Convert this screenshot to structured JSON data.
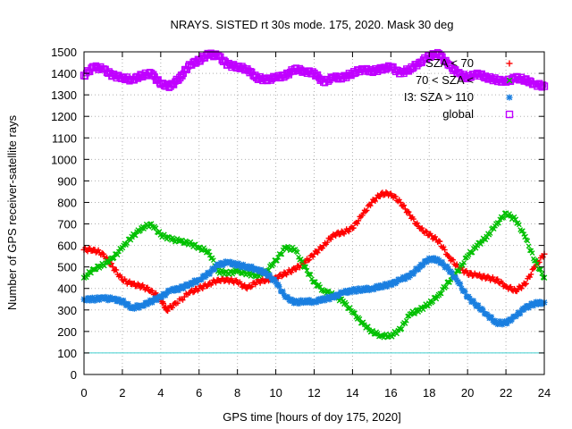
{
  "chart_data": {
    "type": "scatter",
    "title": "NRAYS. SISTED rt 30s mode. 175, 2020. Mask 30 deg",
    "xlabel": "GPS time [hours of doy 175, 2020]",
    "ylabel": "Number of GPS receiver-satellite rays",
    "xlim": [
      0,
      24
    ],
    "ylim": [
      0,
      1500
    ],
    "xticks": [
      "0",
      "2",
      "4",
      "6",
      "8",
      "10",
      "12",
      "14",
      "16",
      "18",
      "20",
      "22",
      "24"
    ],
    "yticks": [
      "0",
      "100",
      "200",
      "300",
      "400",
      "500",
      "600",
      "700",
      "800",
      "900",
      "1000",
      "1100",
      "1200",
      "1300",
      "1400",
      "1500"
    ],
    "grid": true,
    "legend_position": "top-right",
    "reference_line": {
      "value": 100,
      "color": "#40d0d0"
    },
    "series": [
      {
        "name": "I1: SZA < 70",
        "legend_text": "SZA < 70",
        "color": "#ff0000",
        "marker": "plus",
        "x": [
          0,
          0.5,
          1,
          1.5,
          2,
          2.5,
          3,
          3.5,
          4,
          4.3,
          4.8,
          5.5,
          6,
          6.5,
          7,
          7.5,
          8,
          8.5,
          9,
          9.5,
          10,
          10.5,
          11,
          11.5,
          12,
          12.5,
          13,
          13.5,
          14,
          14.5,
          15,
          15.5,
          16,
          16.5,
          17,
          17.5,
          18,
          18.5,
          19,
          19.5,
          20,
          20.5,
          21,
          21.5,
          22,
          22.5,
          23,
          23.5,
          24
        ],
        "y": [
          580,
          580,
          560,
          500,
          440,
          420,
          410,
          390,
          350,
          300,
          330,
          380,
          400,
          420,
          440,
          440,
          430,
          400,
          430,
          440,
          450,
          470,
          490,
          520,
          560,
          600,
          650,
          660,
          680,
          740,
          800,
          840,
          840,
          800,
          740,
          680,
          650,
          620,
          550,
          500,
          470,
          460,
          450,
          440,
          410,
          390,
          420,
          500,
          560
        ]
      },
      {
        "name": "I2: 70 < SZA < 110",
        "legend_text": "70 < SZA <",
        "color": "#00c000",
        "marker": "cross",
        "x": [
          0,
          0.5,
          1,
          1.5,
          2,
          2.5,
          3,
          3.5,
          4,
          4.5,
          5,
          5.5,
          6,
          6.5,
          7,
          7.5,
          8,
          8.5,
          9,
          9.5,
          10,
          10.5,
          11,
          11.5,
          12,
          12.5,
          13,
          13.5,
          14,
          14.5,
          15,
          15.5,
          16,
          16.5,
          17,
          17.5,
          18,
          18.5,
          19,
          19.5,
          20,
          20.5,
          21,
          21.5,
          22,
          22.5,
          23,
          23.5,
          24
        ],
        "y": [
          450,
          490,
          510,
          540,
          590,
          640,
          680,
          700,
          650,
          630,
          620,
          610,
          590,
          570,
          480,
          470,
          480,
          470,
          460,
          480,
          530,
          590,
          580,
          500,
          430,
          390,
          370,
          340,
          290,
          240,
          200,
          180,
          180,
          210,
          280,
          300,
          330,
          370,
          430,
          480,
          550,
          600,
          640,
          700,
          750,
          720,
          640,
          530,
          450
        ]
      },
      {
        "name": "I3: SZA > 110",
        "legend_text": "I3: SZA > 110",
        "color": "#1a7fe0",
        "marker": "star",
        "x": [
          0,
          0.5,
          1,
          1.5,
          2,
          2.5,
          3,
          3.5,
          4,
          4.5,
          5,
          5.5,
          6,
          6.5,
          7,
          7.5,
          8,
          8.5,
          9,
          9.5,
          10,
          10.5,
          11,
          11.5,
          12,
          12.5,
          13,
          13.5,
          14,
          14.5,
          15,
          15.5,
          16,
          16.5,
          17,
          17.5,
          18,
          18.5,
          19,
          19.5,
          20,
          20.5,
          21,
          21.5,
          22,
          22.5,
          23,
          23.5,
          24
        ],
        "y": [
          350,
          350,
          355,
          350,
          340,
          310,
          320,
          340,
          360,
          390,
          400,
          420,
          440,
          470,
          510,
          520,
          510,
          500,
          490,
          470,
          430,
          360,
          335,
          340,
          340,
          350,
          360,
          380,
          390,
          395,
          400,
          410,
          420,
          440,
          460,
          500,
          540,
          530,
          490,
          430,
          360,
          320,
          280,
          240,
          240,
          270,
          310,
          330,
          335
        ]
      },
      {
        "name": "global",
        "legend_text": "global",
        "color": "#c000ff",
        "marker": "square",
        "x": [
          0,
          0.5,
          1,
          1.5,
          2,
          2.5,
          3,
          3.5,
          4,
          4.5,
          5,
          5.5,
          6,
          6.5,
          7,
          7.5,
          8,
          8.5,
          9,
          9.5,
          10,
          10.5,
          11,
          11.5,
          12,
          12.5,
          13,
          13.5,
          14,
          14.5,
          15,
          15.5,
          16,
          16.5,
          17,
          17.5,
          18,
          18.5,
          19,
          19.5,
          20,
          20.5,
          21,
          21.5,
          22,
          22.5,
          23,
          23.5,
          24
        ],
        "y": [
          1390,
          1430,
          1420,
          1390,
          1380,
          1370,
          1390,
          1400,
          1350,
          1340,
          1380,
          1440,
          1460,
          1490,
          1480,
          1440,
          1430,
          1420,
          1380,
          1370,
          1380,
          1390,
          1420,
          1410,
          1400,
          1360,
          1380,
          1380,
          1400,
          1420,
          1410,
          1420,
          1430,
          1400,
          1420,
          1450,
          1480,
          1490,
          1440,
          1400,
          1380,
          1400,
          1380,
          1370,
          1360,
          1380,
          1370,
          1350,
          1340
        ]
      }
    ]
  }
}
